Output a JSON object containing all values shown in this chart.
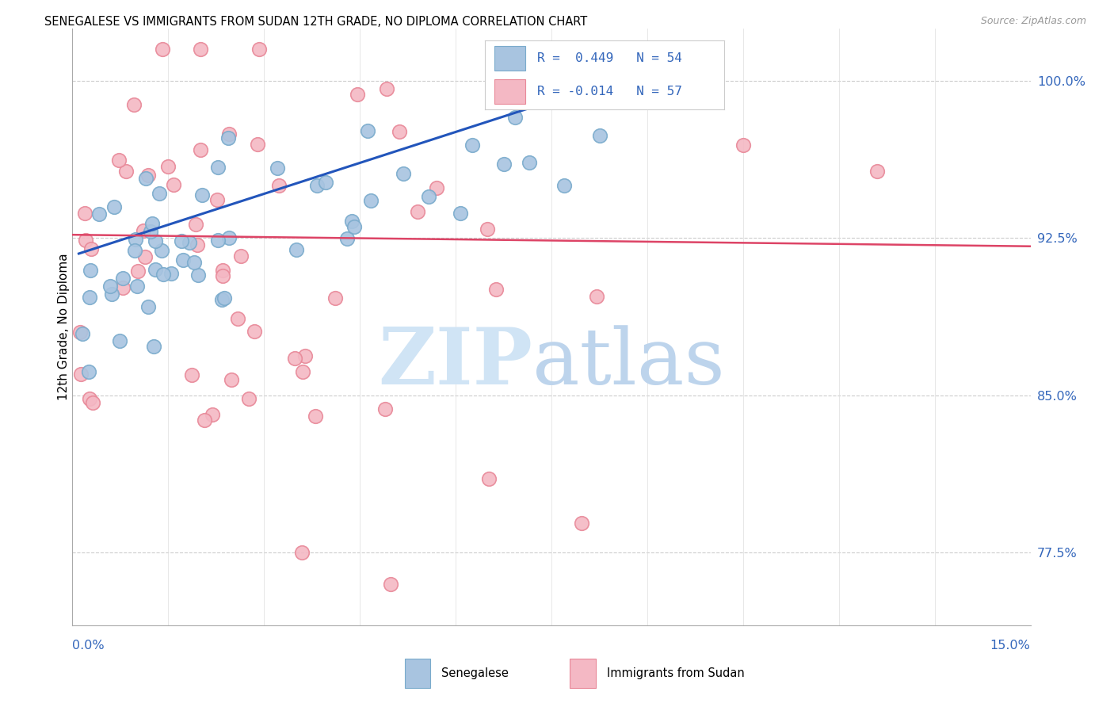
{
  "title": "SENEGALESE VS IMMIGRANTS FROM SUDAN 12TH GRADE, NO DIPLOMA CORRELATION CHART",
  "source": "Source: ZipAtlas.com",
  "ylabel": "12th Grade, No Diploma",
  "y_ticks": [
    0.775,
    0.85,
    0.925,
    1.0
  ],
  "y_tick_labels": [
    "77.5%",
    "85.0%",
    "92.5%",
    "100.0%"
  ],
  "x_min": 0.0,
  "x_max": 0.15,
  "y_min": 0.74,
  "y_max": 1.025,
  "blue_color": "#A8C4E0",
  "blue_edge_color": "#7AABCC",
  "pink_color": "#F4B8C4",
  "pink_edge_color": "#E88898",
  "blue_line_color": "#2255BB",
  "pink_line_color": "#DD4466",
  "legend_label1": "Senegalese",
  "legend_label2": "Immigrants from Sudan",
  "blue_trend_x0": 0.001,
  "blue_trend_y0": 0.9175,
  "blue_trend_x1": 0.093,
  "blue_trend_y1": 1.008,
  "pink_trend_x0": 0.0,
  "pink_trend_y0": 0.9265,
  "pink_trend_x1": 0.15,
  "pink_trend_y1": 0.921,
  "dot_size": 160,
  "dot_linewidth": 1.2
}
